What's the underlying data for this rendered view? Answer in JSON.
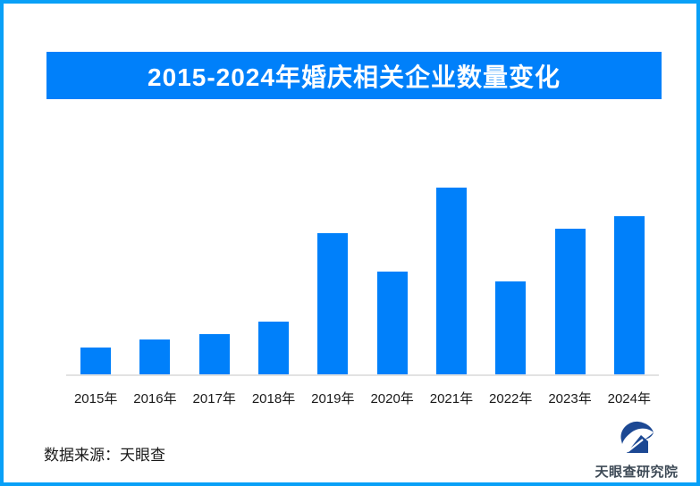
{
  "header": {
    "title": "2015-2024年婚庆相关企业数量变化"
  },
  "chart_data": {
    "type": "bar",
    "title": "2015-2024年婚庆相关企业数量变化",
    "categories": [
      "2015年",
      "2016年",
      "2017年",
      "2018年",
      "2019年",
      "2020年",
      "2021年",
      "2022年",
      "2023年",
      "2024年"
    ],
    "values": [
      14.2,
      18.5,
      21.3,
      28.0,
      75.8,
      55.0,
      100.0,
      49.8,
      78.2,
      84.8
    ],
    "value_scale_note": "no y-axis ticks or data labels shown in image; values are relative bar heights with 2021 peak = 100",
    "xlabel": "",
    "ylabel": "",
    "ylim": [
      0,
      110
    ],
    "grid": false,
    "legend": "none",
    "bar_color": "#0080fa",
    "axis_line_color": "#e2e2e2"
  },
  "footer": {
    "source": "数据来源：天眼查"
  },
  "logo": {
    "label": "天眼查研究院"
  },
  "colors": {
    "accent_blue": "#0080fa",
    "border_blue": "#09a0f7",
    "logo_navy": "#1c4893",
    "logo_text": "#3e4a56",
    "axis_line": "#e2e2e2"
  }
}
